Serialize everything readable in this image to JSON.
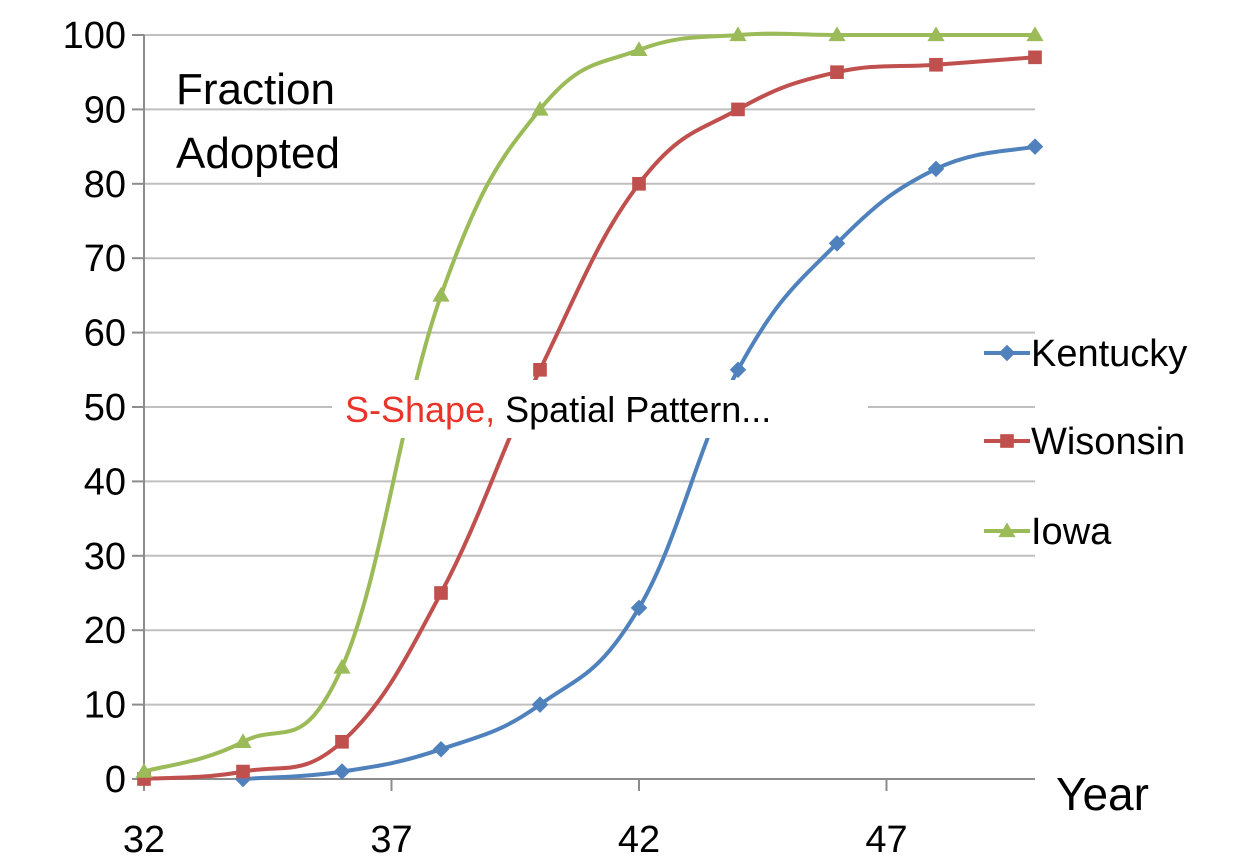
{
  "chart_data": {
    "type": "line",
    "ylabel": [
      "Fraction",
      "Adopted"
    ],
    "xlabel": "Year",
    "xlim": [
      32,
      50
    ],
    "ylim": [
      0,
      100
    ],
    "x_ticks": [
      32,
      37,
      42,
      47
    ],
    "y_ticks": [
      0,
      10,
      20,
      30,
      40,
      50,
      60,
      70,
      80,
      90,
      100
    ],
    "grid": "horizontal",
    "legend_position": "right",
    "annotation": {
      "highlight": "S-Shape,",
      "rest": "Spatial Pattern...",
      "highlight_color": "#E8342A"
    },
    "series": [
      {
        "name": "Kentucky",
        "color": "#4F81BD",
        "marker": "diamond",
        "x": [
          34,
          36,
          38,
          40,
          42,
          44,
          46,
          48,
          50
        ],
        "values": [
          0,
          1,
          4,
          10,
          23,
          55,
          72,
          82,
          85
        ]
      },
      {
        "name": "Wisonsin",
        "color": "#C0504D",
        "marker": "square",
        "x": [
          32,
          34,
          36,
          38,
          40,
          42,
          44,
          46,
          48,
          50
        ],
        "values": [
          0,
          1,
          5,
          25,
          55,
          80,
          90,
          95,
          96,
          97
        ]
      },
      {
        "name": "Iowa",
        "color": "#9BBB59",
        "marker": "triangle",
        "x": [
          32,
          34,
          36,
          38,
          40,
          42,
          44,
          46,
          48,
          50
        ],
        "values": [
          1,
          5,
          15,
          65,
          90,
          98,
          100,
          100,
          100,
          100
        ]
      }
    ]
  }
}
